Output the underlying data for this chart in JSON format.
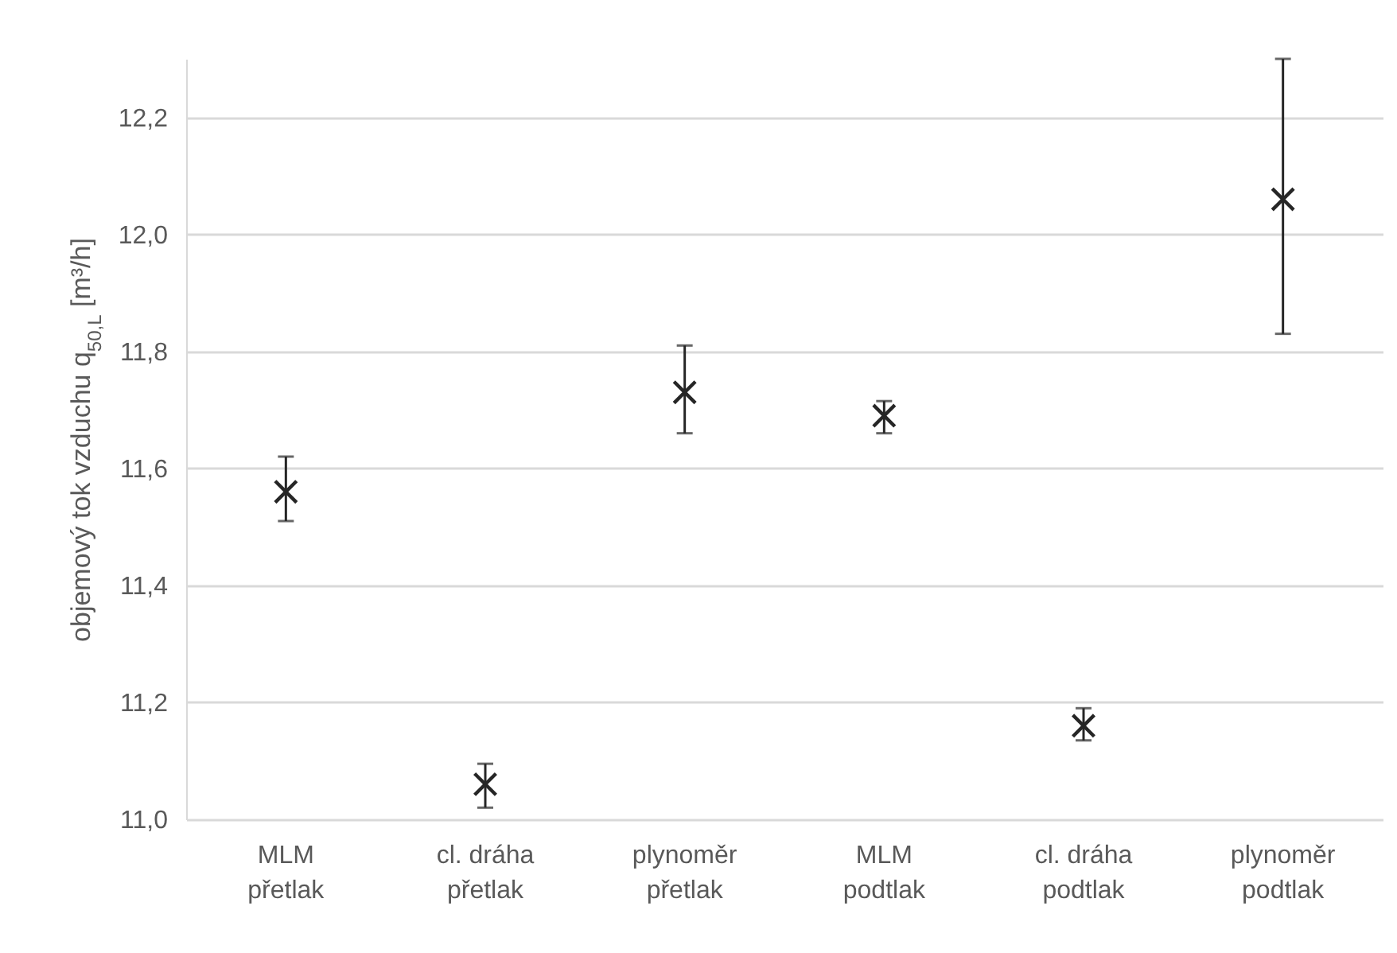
{
  "chart_data": {
    "type": "scatter",
    "ylabel": "objemový tok vzduchu q$_{50,L}$ [m³/h]",
    "categories": [
      "MLM přetlak",
      "cl. dráha přetlak",
      "plynoměr přetlak",
      "MLM podtlak",
      "cl. dráha podtlak",
      "plynoměr podtlak"
    ],
    "series": [
      {
        "color": "#262626",
        "values": [
          11.56,
          11.06,
          11.73,
          11.69,
          11.16,
          12.06
        ],
        "errors": [
          [
            11.51,
            11.62
          ],
          [
            11.02,
            11.095
          ],
          [
            11.66,
            11.81
          ],
          [
            11.66,
            11.715
          ],
          [
            11.135,
            11.19
          ],
          [
            11.83,
            12.3
          ]
        ]
      }
    ],
    "ylim": [
      11.0,
      12.3
    ],
    "yticks": [
      {
        "value": 11.0,
        "label": "11,0"
      },
      {
        "value": 11.2,
        "label": "11,2"
      },
      {
        "value": 11.4,
        "label": "11,4"
      },
      {
        "value": 11.6,
        "label": "11,6"
      },
      {
        "value": 11.8,
        "label": "11,8"
      },
      {
        "value": 12.0,
        "label": "12,0"
      },
      {
        "value": 12.2,
        "label": "12,2"
      }
    ],
    "grid": "y",
    "marker": "cross"
  }
}
